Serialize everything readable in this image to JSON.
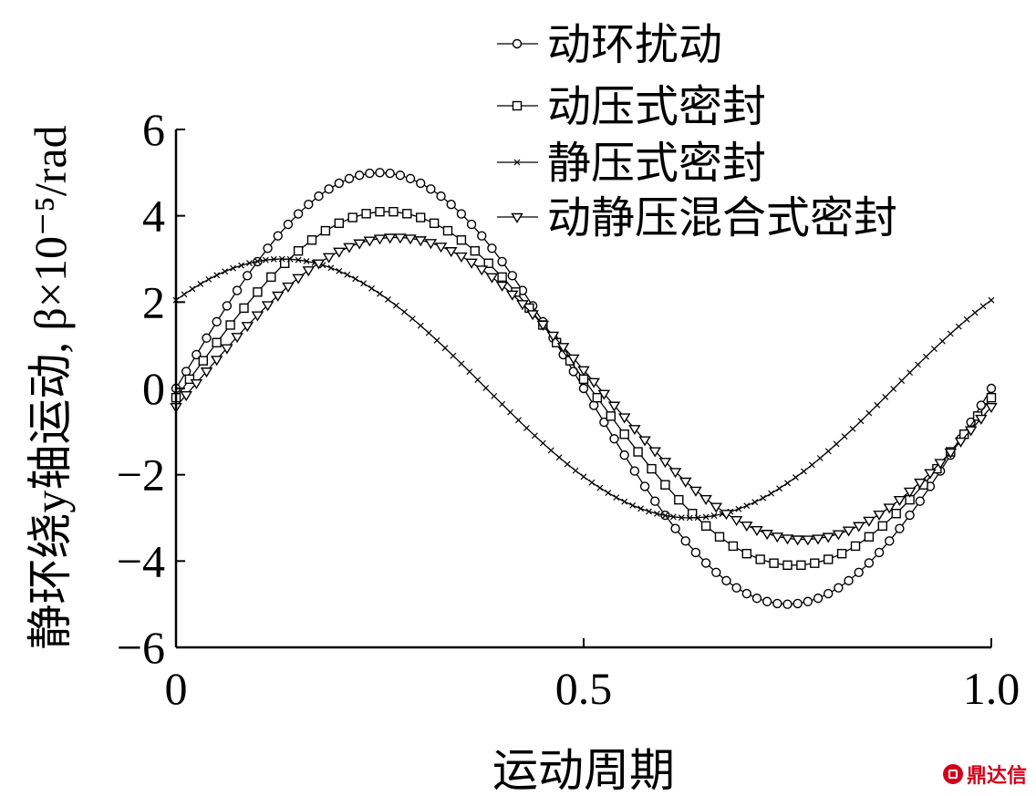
{
  "chart_data": {
    "type": "line",
    "title": "",
    "xlabel": "运动周期",
    "ylabel": "静环绕y轴运动, β×10⁻⁵/rad",
    "xlim": [
      0,
      1.0
    ],
    "ylim": [
      -6,
      6
    ],
    "x_ticks": [
      "0",
      "0.5",
      "1.0"
    ],
    "y_ticks": [
      "6",
      "4",
      "2",
      "0",
      "−2",
      "−4",
      "−6"
    ],
    "x_tick_values": [
      0,
      0.5,
      1.0
    ],
    "y_tick_values": [
      6,
      4,
      2,
      0,
      -2,
      -4,
      -6
    ],
    "grid": false,
    "legend_position": "top-right",
    "series": [
      {
        "name": "动环扰动",
        "marker": "circle",
        "amplitude": 5.0,
        "phase_deg": 0,
        "samples": 81
      },
      {
        "name": "动压式密封",
        "marker": "square",
        "amplitude": 4.1,
        "phase_deg": -3,
        "samples": 61
      },
      {
        "name": "静压式密封",
        "marker": "x",
        "amplitude": 3.0,
        "phase_deg": 43,
        "samples": 101
      },
      {
        "name": "动静压混合式密封",
        "marker": "triangle-down",
        "amplitude": 3.5,
        "phase_deg": -7,
        "samples": 81
      }
    ]
  },
  "watermark": {
    "text": "鼎达信"
  }
}
